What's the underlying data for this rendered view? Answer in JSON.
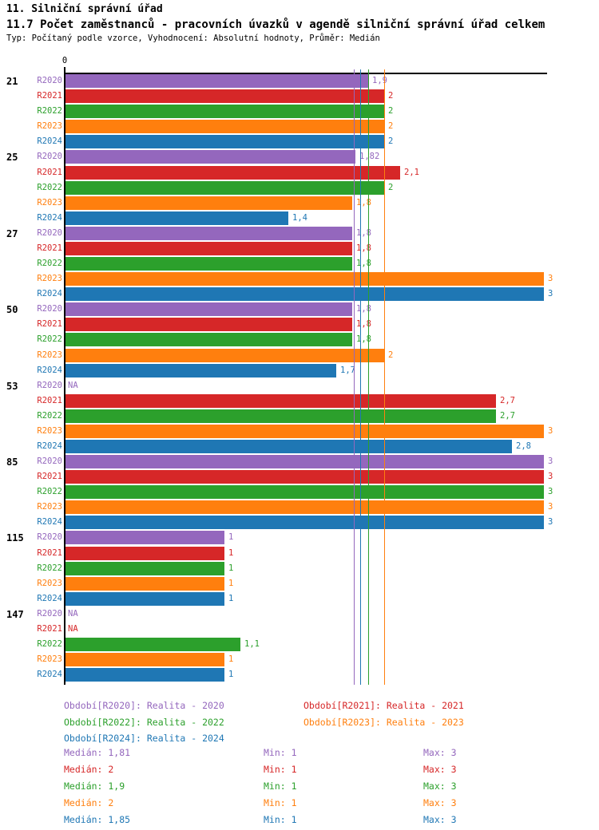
{
  "header": {
    "title": "11. Silniční správní úřad",
    "subtitle": "11.7 Počet zaměstnanců - pracovních úvazků v agendě silniční správní úřad celkem",
    "meta": "Typ: Počítaný podle vzorce, Vyhodnocení: Absolutní hodnoty, Průměr: Medián"
  },
  "chart_data": {
    "type": "bar",
    "orientation": "horizontal",
    "title": "11.7 Počet zaměstnanců - pracovních úvazků v agendě silniční správní úřad celkem",
    "xlim": [
      0,
      3
    ],
    "x_origin_label": "0",
    "grid": false,
    "na_text": "NA",
    "categories": [
      "21",
      "25",
      "27",
      "50",
      "53",
      "85",
      "115",
      "147"
    ],
    "series": [
      {
        "name": "R2020",
        "color": "#9467BD",
        "values": [
          1.9,
          1.82,
          1.8,
          1.8,
          null,
          3,
          1,
          null
        ],
        "labels": [
          "1,9",
          "1,82",
          "1,8",
          "1,8",
          "NA",
          "3",
          "1",
          "NA"
        ],
        "median": 1.81,
        "legend_label": "Období[R2020]: Realita - 2020",
        "stat_median": "Medián: 1,81",
        "stat_min": "Min: 1",
        "stat_max": "Max: 3"
      },
      {
        "name": "R2021",
        "color": "#D62728",
        "values": [
          2,
          2.1,
          1.8,
          1.8,
          2.7,
          3,
          1,
          null
        ],
        "labels": [
          "2",
          "2,1",
          "1,8",
          "1,8",
          "2,7",
          "3",
          "1",
          "NA"
        ],
        "median": 2,
        "legend_label": "Období[R2021]: Realita - 2021",
        "stat_median": "Medián: 2",
        "stat_min": "Min: 1",
        "stat_max": "Max: 3"
      },
      {
        "name": "R2022",
        "color": "#2CA02C",
        "values": [
          2,
          2,
          1.8,
          1.8,
          2.7,
          3,
          1,
          1.1
        ],
        "labels": [
          "2",
          "2",
          "1,8",
          "1,8",
          "2,7",
          "3",
          "1",
          "1,1"
        ],
        "median": 1.9,
        "legend_label": "Období[R2022]: Realita - 2022",
        "stat_median": "Medián: 1,9",
        "stat_min": "Min: 1",
        "stat_max": "Max: 3"
      },
      {
        "name": "R2023",
        "color": "#FF7F0E",
        "values": [
          2,
          1.8,
          3,
          2,
          3,
          3,
          1,
          1
        ],
        "labels": [
          "2",
          "1,8",
          "3",
          "2",
          "3",
          "3",
          "1",
          "1"
        ],
        "median": 2,
        "legend_label": "Období[R2023]: Realita - 2023",
        "stat_median": "Medián: 2",
        "stat_min": "Min: 1",
        "stat_max": "Max: 3"
      },
      {
        "name": "R2024",
        "color": "#1F77B4",
        "values": [
          2,
          1.4,
          3,
          1.7,
          2.8,
          3,
          1,
          1
        ],
        "labels": [
          "2",
          "1,4",
          "3",
          "1,7",
          "2,8",
          "3",
          "1",
          "1"
        ],
        "median": 1.85,
        "legend_label": "Období[R2024]: Realita - 2024",
        "stat_median": "Medián: 1,85",
        "stat_min": "Min: 1",
        "stat_max": "Max: 3"
      }
    ]
  }
}
